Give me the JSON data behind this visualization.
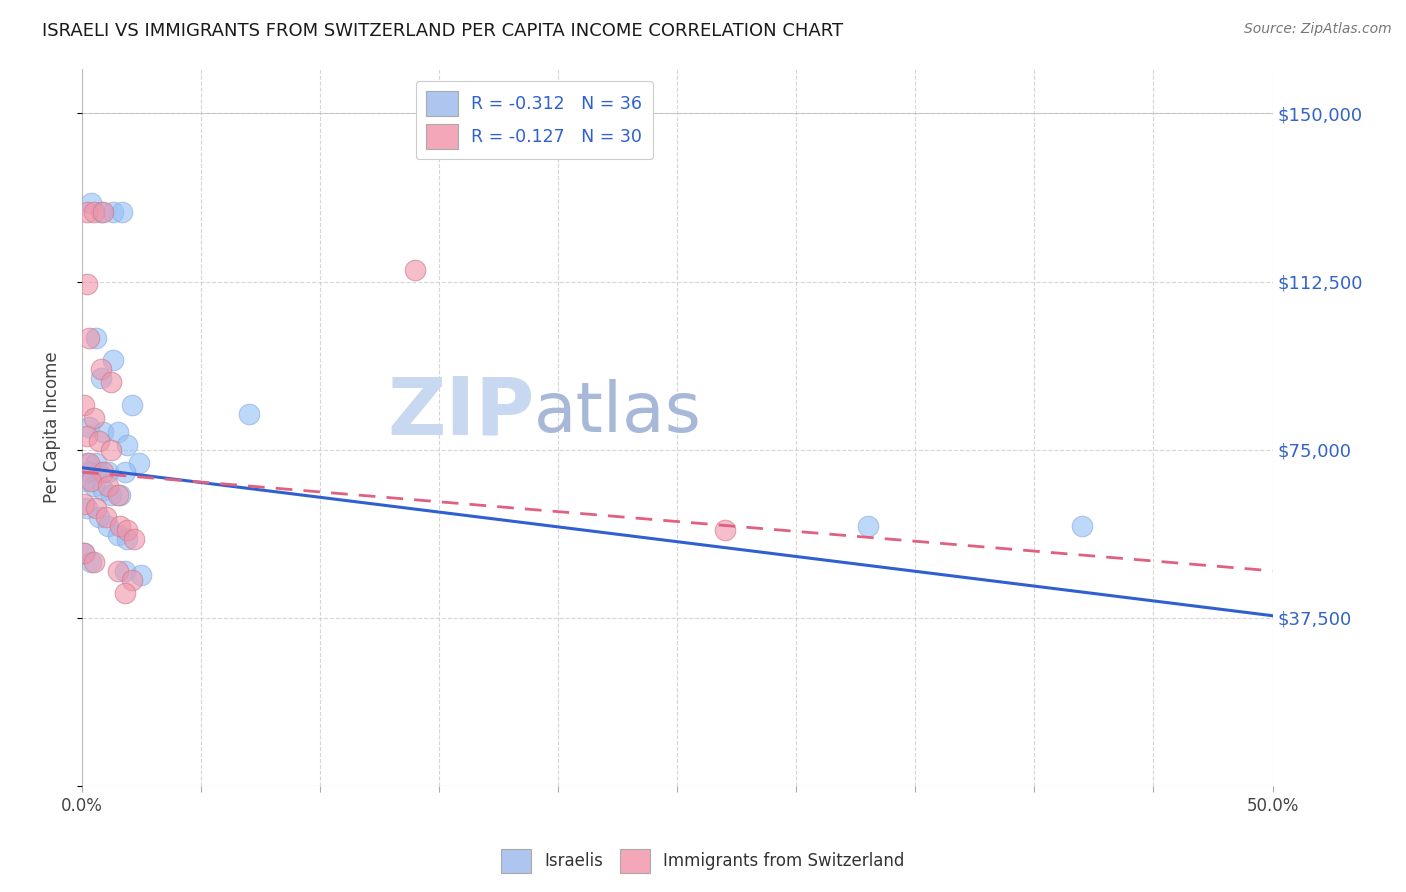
{
  "title": "ISRAELI VS IMMIGRANTS FROM SWITZERLAND PER CAPITA INCOME CORRELATION CHART",
  "source": "Source: ZipAtlas.com",
  "ylabel": "Per Capita Income",
  "yticks": [
    0,
    37500,
    75000,
    112500,
    150000
  ],
  "ytick_labels": [
    "",
    "$37,500",
    "$75,000",
    "$112,500",
    "$150,000"
  ],
  "xlim": [
    0.0,
    0.5
  ],
  "ylim": [
    0,
    160000
  ],
  "legend_entries": [
    {
      "label": "R = -0.312   N = 36",
      "color": "#aec6ef"
    },
    {
      "label": "R = -0.127   N = 30",
      "color": "#f4a7b9"
    }
  ],
  "bottom_legend": [
    {
      "label": "Israelis",
      "color": "#aec6ef"
    },
    {
      "label": "Immigrants from Switzerland",
      "color": "#f4a7b9"
    }
  ],
  "watermark_zip": "ZIP",
  "watermark_atlas": "atlas",
  "blue_scatter": [
    [
      0.004,
      130000
    ],
    [
      0.008,
      128000
    ],
    [
      0.013,
      128000
    ],
    [
      0.017,
      128000
    ],
    [
      0.006,
      100000
    ],
    [
      0.013,
      95000
    ],
    [
      0.008,
      91000
    ],
    [
      0.021,
      85000
    ],
    [
      0.003,
      80000
    ],
    [
      0.009,
      79000
    ],
    [
      0.015,
      79000
    ],
    [
      0.019,
      76000
    ],
    [
      0.002,
      72000
    ],
    [
      0.006,
      72000
    ],
    [
      0.024,
      72000
    ],
    [
      0.003,
      70000
    ],
    [
      0.007,
      70000
    ],
    [
      0.011,
      70000
    ],
    [
      0.018,
      70000
    ],
    [
      0.001,
      68000
    ],
    [
      0.005,
      67000
    ],
    [
      0.009,
      66000
    ],
    [
      0.012,
      65000
    ],
    [
      0.016,
      65000
    ],
    [
      0.002,
      62000
    ],
    [
      0.007,
      60000
    ],
    [
      0.011,
      58000
    ],
    [
      0.015,
      56000
    ],
    [
      0.019,
      55000
    ],
    [
      0.001,
      52000
    ],
    [
      0.004,
      50000
    ],
    [
      0.018,
      48000
    ],
    [
      0.025,
      47000
    ],
    [
      0.33,
      58000
    ],
    [
      0.42,
      58000
    ],
    [
      0.07,
      83000
    ]
  ],
  "pink_scatter": [
    [
      0.002,
      128000
    ],
    [
      0.005,
      128000
    ],
    [
      0.009,
      128000
    ],
    [
      0.002,
      112000
    ],
    [
      0.003,
      100000
    ],
    [
      0.008,
      93000
    ],
    [
      0.012,
      90000
    ],
    [
      0.001,
      85000
    ],
    [
      0.005,
      82000
    ],
    [
      0.002,
      78000
    ],
    [
      0.007,
      77000
    ],
    [
      0.012,
      75000
    ],
    [
      0.003,
      72000
    ],
    [
      0.009,
      70000
    ],
    [
      0.004,
      68000
    ],
    [
      0.011,
      67000
    ],
    [
      0.015,
      65000
    ],
    [
      0.001,
      63000
    ],
    [
      0.006,
      62000
    ],
    [
      0.01,
      60000
    ],
    [
      0.016,
      58000
    ],
    [
      0.019,
      57000
    ],
    [
      0.022,
      55000
    ],
    [
      0.001,
      52000
    ],
    [
      0.005,
      50000
    ],
    [
      0.015,
      48000
    ],
    [
      0.021,
      46000
    ],
    [
      0.018,
      43000
    ],
    [
      0.14,
      115000
    ],
    [
      0.27,
      57000
    ]
  ],
  "blue_line": {
    "x": [
      0.0,
      0.5
    ],
    "y": [
      71000,
      38000
    ]
  },
  "pink_line": {
    "x": [
      0.0,
      0.5
    ],
    "y": [
      70000,
      48000
    ]
  },
  "title_color": "#1a1a1a",
  "grid_color": "#cccccc",
  "blue_color": "#92bef5",
  "pink_color": "#f093a8",
  "blue_line_color": "#3060d0",
  "pink_line_color": "#e06080",
  "watermark_zip_color": "#c8d8f0",
  "watermark_atlas_color": "#a8b8d8",
  "right_axis_color": "#3264c8",
  "background_color": "#ffffff"
}
